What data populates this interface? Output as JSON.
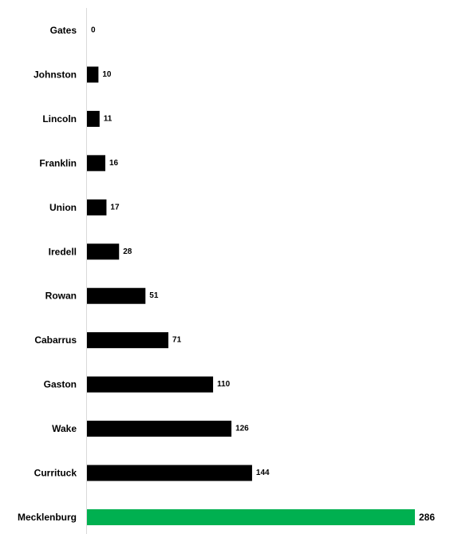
{
  "chart_data": {
    "type": "bar",
    "orientation": "horizontal",
    "categories": [
      "Gates",
      "Johnston",
      "Lincoln",
      "Franklin",
      "Union",
      "Iredell",
      "Rowan",
      "Cabarrus",
      "Gaston",
      "Wake",
      "Currituck",
      "Mecklenburg"
    ],
    "values": [
      0,
      10,
      11,
      16,
      17,
      28,
      51,
      71,
      110,
      126,
      144,
      286
    ],
    "data_labels": [
      "0",
      "10",
      "11",
      "16",
      "17",
      "28",
      "51",
      "71",
      "110",
      "126",
      "144",
      "286"
    ],
    "highlight_category": "Mecklenburg",
    "xlim": [
      0,
      286
    ],
    "grid": false,
    "legend": "none"
  },
  "colors": {
    "bar": "#000000",
    "highlight_bar": "#00b050",
    "highlight_label": "#00b050",
    "axis_line": "#d9d9d9",
    "text": "#000000"
  }
}
